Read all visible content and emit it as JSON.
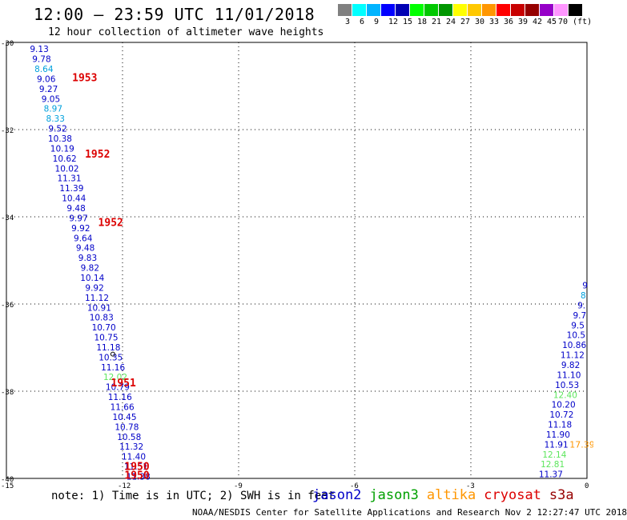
{
  "header": {
    "title": "12:00 — 23:59 UTC 11/01/2018",
    "subtitle": "12 hour collection of altimeter wave heights"
  },
  "legend": {
    "colors": [
      "#808080",
      "#00ffff",
      "#00b4ff",
      "#0000ff",
      "#0000b4",
      "#00ff00",
      "#00c800",
      "#009600",
      "#ffff00",
      "#ffc800",
      "#ff9600",
      "#ff0000",
      "#c80000",
      "#960000",
      "#9600c8",
      "#ff96ff",
      "#000000"
    ],
    "labels": [
      "3",
      "6",
      "9",
      "12",
      "15",
      "18",
      "21",
      "24",
      "27",
      "30",
      "33",
      "36",
      "39",
      "42",
      "45",
      "70 (ft)"
    ]
  },
  "axes": {
    "lat_ticks": [
      "-30",
      "-32",
      "-34",
      "-36",
      "-38",
      "-40"
    ],
    "lon_ticks": [
      "-15",
      "-12",
      "-9",
      "-6",
      "-3",
      "0"
    ]
  },
  "chart_data": {
    "type": "scatter",
    "xlabel": "",
    "ylabel": "",
    "xlim": [
      -15,
      0
    ],
    "ylim": [
      -40,
      -30
    ],
    "track_left": {
      "values": [
        "9.13",
        "9.78",
        "8.64",
        "9.06",
        "9.27",
        "9.05",
        "8.97",
        "8.33",
        "9.52",
        "10.38",
        "10.19",
        "10.62",
        "10.02",
        "11.31",
        "11.39",
        "10.44",
        "9.48",
        "9.97",
        "9.92",
        "9.64",
        "9.48",
        "9.83",
        "9.82",
        "10.14",
        "9.92",
        "11.12",
        "10.91",
        "10.83",
        "10.70",
        "10.75",
        "11.18",
        "10.35",
        "11.16",
        "12.02",
        "10.79",
        "11.16",
        "11.66",
        "10.45",
        "10.78",
        "10.58",
        "11.32",
        "11.40",
        "11.51",
        "11.38"
      ],
      "colors": [
        "#0000c8",
        "#0000c8",
        "#00a0dc",
        "#0000c8",
        "#0000c8",
        "#0000c8",
        "#00a0dc",
        "#00a0dc",
        "#0000c8",
        "#0000c8",
        "#0000c8",
        "#0000c8",
        "#0000c8",
        "#0000c8",
        "#0000c8",
        "#0000c8",
        "#0000c8",
        "#0000c8",
        "#0000c8",
        "#0000c8",
        "#0000c8",
        "#0000c8",
        "#0000c8",
        "#0000c8",
        "#0000c8",
        "#0000c8",
        "#0000c8",
        "#0000c8",
        "#0000c8",
        "#0000c8",
        "#0000c8",
        "#0000c8",
        "#0000c8",
        "#5ce65c",
        "#0000c8",
        "#0000c8",
        "#0000c8",
        "#0000c8",
        "#0000c8",
        "#0000c8",
        "#0000c8",
        "#0000c8",
        "#0000c8",
        "#0000c8"
      ],
      "lat_start": -30.15,
      "lat_step": -0.228,
      "lon_start": -14.15,
      "lon_step": 0.0595
    },
    "track_right": {
      "values": [
        "9",
        "8",
        "9.",
        "9.7",
        "9.5",
        "10.5",
        "10.86",
        "11.12",
        "9.82",
        "11.10",
        "10.53",
        "12.40",
        "10.20",
        "10.72",
        "11.18",
        "11.90",
        "11.91",
        "12.14",
        "12.81",
        "11.37"
      ],
      "colors": [
        "#0000c8",
        "#00a0dc",
        "#0000c8",
        "#0000c8",
        "#0000c8",
        "#0000c8",
        "#0000c8",
        "#0000c8",
        "#0000c8",
        "#0000c8",
        "#0000c8",
        "#5ce65c",
        "#0000c8",
        "#0000c8",
        "#0000c8",
        "#0000c8",
        "#0000c8",
        "#5ce65c",
        "#5ce65c",
        "#0000c8"
      ],
      "lat_start": -35.57,
      "lat_step": -0.228,
      "lon_start": -0.05,
      "lon_step": -0.0465
    },
    "time_labels": [
      {
        "text": "1953",
        "lat": -30.8,
        "lon": -13.3
      },
      {
        "text": "1952",
        "lat": -32.55,
        "lon": -12.97
      },
      {
        "text": "1952",
        "lat": -34.12,
        "lon": -12.63
      },
      {
        "text": "1951",
        "lat": -37.8,
        "lon": -12.3
      },
      {
        "text": "1950",
        "lat": -39.72,
        "lon": -11.95
      },
      {
        "text": "1950",
        "lat": -39.92,
        "lon": -11.95
      }
    ],
    "extra_labels": [
      {
        "text": "17.39",
        "lat": -39.22,
        "lon": -0.45,
        "color": "#ff9600"
      }
    ],
    "marker": {
      "lat": -37.15,
      "lon": -12.25
    }
  },
  "footer": {
    "note": "note: 1) Time is in UTC; 2) SWH is in feet",
    "satellites": [
      {
        "name": "jason2",
        "color": "#0000c8"
      },
      {
        "name": "jason3",
        "color": "#00a000"
      },
      {
        "name": "altika",
        "color": "#ff9600"
      },
      {
        "name": "cryosat",
        "color": "#dc0000"
      },
      {
        "name": "s3a",
        "color": "#960000"
      }
    ],
    "credit": "NOAA/NESDIS Center for Satellite Applications and Research    Nov  2 12:27:47 UTC 2018"
  }
}
